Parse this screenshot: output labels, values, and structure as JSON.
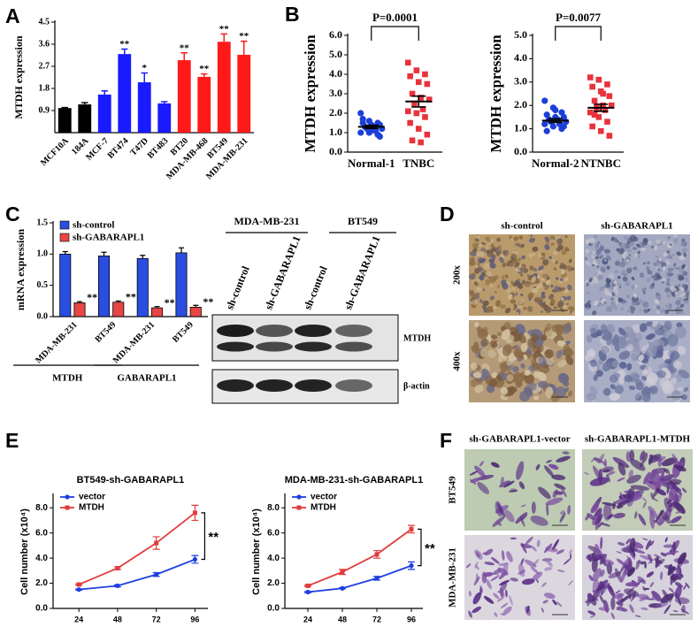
{
  "panel_letters": [
    "A",
    "B",
    "C",
    "D",
    "E",
    "F"
  ],
  "chart_data": [
    {
      "type": "bar",
      "ylabel": "MTDH expression",
      "categories": [
        "MCF10A",
        "184A",
        "MCF-7",
        "BT474",
        "T47D",
        "BT483",
        "BT20",
        "MDA-MB-468",
        "BT549",
        "MDA-MB-231"
      ],
      "values": [
        1.0,
        1.15,
        1.55,
        3.2,
        2.05,
        1.19,
        2.95,
        2.27,
        3.7,
        3.17
      ],
      "errors": [
        0.02,
        0.07,
        0.15,
        0.2,
        0.38,
        0.07,
        0.3,
        0.12,
        0.32,
        0.55
      ],
      "colors": [
        "#000000",
        "#000000",
        "#1a1aff",
        "#1a1aff",
        "#1a1aff",
        "#1a1aff",
        "#ff1a1a",
        "#ff1a1a",
        "#ff1a1a",
        "#ff1a1a"
      ],
      "annotations": [
        null,
        null,
        null,
        "**",
        "*",
        null,
        "**",
        "**",
        "**",
        "**"
      ],
      "ylim": [
        0,
        4.5
      ],
      "yticks": [
        0.9,
        1.8,
        2.7,
        3.6,
        4.5
      ]
    },
    {
      "type": "scatter",
      "ylabel": "MTDH expression",
      "categories": [
        "Normal-1",
        "TNBC"
      ],
      "annotation": "P=0.0001",
      "series": [
        {
          "color": "#1c3fd8",
          "values": [
            2.0,
            1.6,
            1.5,
            1.5,
            1.4,
            1.4,
            1.3,
            1.3,
            1.2,
            1.2,
            1.1,
            1.0,
            1.0,
            0.9,
            1.7,
            1.1,
            0.8
          ],
          "mean": 1.3,
          "sem": 0.08
        },
        {
          "color": "#e8323c",
          "values": [
            4.6,
            4.2,
            4.0,
            3.9,
            3.6,
            3.5,
            3.0,
            2.8,
            2.7,
            2.5,
            2.2,
            2.1,
            2.0,
            1.8,
            1.5,
            1.2,
            0.9,
            0.6,
            0.5
          ],
          "mean": 2.6,
          "sem": 0.28
        }
      ],
      "ylim": [
        0,
        6
      ],
      "yticks": [
        {
          "value": 0,
          "label": "0.0"
        },
        {
          "value": 1,
          "label": "1.0"
        },
        {
          "value": 2,
          "label": "2.0"
        },
        {
          "value": 3,
          "label": "3.0"
        },
        {
          "value": 4,
          "label": "4.0"
        },
        {
          "value": 5,
          "label": "5.0"
        },
        {
          "value": 6,
          "label": "6.0"
        }
      ]
    },
    {
      "type": "scatter",
      "ylabel": "MTDH expression",
      "categories": [
        "Normal-2",
        "NTNBC"
      ],
      "annotation": "P=0.0077",
      "series": [
        {
          "color": "#1c3fd8",
          "values": [
            2.2,
            1.9,
            1.7,
            1.6,
            1.5,
            1.5,
            1.4,
            1.4,
            1.3,
            1.3,
            1.2,
            1.2,
            1.1,
            1.0,
            0.9,
            1.8,
            1.1
          ],
          "mean": 1.35,
          "sem": 0.08
        },
        {
          "color": "#e8323c",
          "values": [
            3.2,
            3.1,
            2.9,
            2.8,
            2.6,
            2.4,
            2.2,
            2.0,
            2.0,
            1.9,
            1.8,
            1.7,
            1.5,
            1.3,
            1.1,
            0.9,
            0.7,
            1.6,
            2.5
          ],
          "mean": 1.9,
          "sem": 0.15
        }
      ],
      "ylim": [
        0,
        5
      ],
      "yticks": [
        {
          "value": 0,
          "label": "0.0"
        },
        {
          "value": 1,
          "label": "1.0"
        },
        {
          "value": 2,
          "label": "2.0"
        },
        {
          "value": 3,
          "label": "3.0"
        },
        {
          "value": 4,
          "label": "4.0"
        },
        {
          "value": 5,
          "label": "5.0"
        }
      ]
    },
    {
      "type": "grouped_bar",
      "ylabel": "mRNA expression",
      "categories": [
        "MDA-MB-231",
        "BT549",
        "MDA-MB-231",
        "BT549"
      ],
      "group_labels": [
        "MTDH",
        "GABARAPL1"
      ],
      "series": [
        {
          "name": "sh-control",
          "color": "#2b4de0",
          "values": [
            1.0,
            0.97,
            0.93,
            1.02
          ],
          "errors": [
            0.04,
            0.06,
            0.05,
            0.08
          ]
        },
        {
          "name": "sh-GABARAPL1",
          "color": "#e84545",
          "values": [
            0.22,
            0.23,
            0.14,
            0.15
          ],
          "errors": [
            0.02,
            0.02,
            0.02,
            0.03
          ],
          "annotations": [
            "**",
            "**",
            "**",
            "**"
          ]
        }
      ],
      "ylim": [
        0,
        1.5
      ],
      "yticks": [
        {
          "value": 0,
          "label": "0.0"
        },
        {
          "value": 0.5,
          "label": "0.5"
        },
        {
          "value": 1,
          "label": "1.0"
        },
        {
          "value": 1.5,
          "label": "1.5"
        }
      ]
    },
    {
      "type": "line",
      "title": "BT549-sh-GABARAPL1",
      "ylabel": "Cell number (x10⁴)",
      "x": [
        24,
        48,
        72,
        96
      ],
      "xticks": [
        24,
        48,
        72,
        96
      ],
      "xlim": [
        8,
        104
      ],
      "series": [
        {
          "name": "vector",
          "color": "#1f3fe0",
          "values": [
            1.5,
            1.8,
            2.7,
            3.9
          ],
          "errors": [
            0.05,
            0.08,
            0.15,
            0.3
          ]
        },
        {
          "name": "MTDH",
          "color": "#e03c3c",
          "values": [
            1.9,
            3.2,
            5.2,
            7.6
          ],
          "errors": [
            0.05,
            0.1,
            0.5,
            0.6
          ]
        }
      ],
      "annotation": "**",
      "ylim": [
        0,
        9
      ],
      "yticks": [
        {
          "value": 0,
          "label": "0.0"
        },
        {
          "value": 2,
          "label": "2.0"
        },
        {
          "value": 4,
          "label": "4.0"
        },
        {
          "value": 6,
          "label": "6.0"
        },
        {
          "value": 8,
          "label": "8.0"
        }
      ]
    },
    {
      "type": "line",
      "title": "MDA-MB-231-sh-GABARAPL1",
      "ylabel": "Cell number (x10⁴)",
      "x": [
        24,
        48,
        72,
        96
      ],
      "xticks": [
        24,
        48,
        72,
        96
      ],
      "xlim": [
        8,
        104
      ],
      "series": [
        {
          "name": "vector",
          "color": "#1f3fe0",
          "values": [
            1.3,
            1.6,
            2.4,
            3.4
          ],
          "errors": [
            0.05,
            0.05,
            0.15,
            0.3
          ]
        },
        {
          "name": "MTDH",
          "color": "#e03c3c",
          "values": [
            1.8,
            2.9,
            4.3,
            6.3
          ],
          "errors": [
            0.05,
            0.2,
            0.3,
            0.3
          ]
        }
      ],
      "annotation": "**",
      "ylim": [
        0,
        9
      ],
      "yticks": [
        {
          "value": 0,
          "label": "0.0"
        },
        {
          "value": 2,
          "label": "2.0"
        },
        {
          "value": 4,
          "label": "4.0"
        },
        {
          "value": 6,
          "label": "6.0"
        },
        {
          "value": 8,
          "label": "8.0"
        }
      ]
    }
  ],
  "blot": {
    "cell_lines": [
      "MDA-MB-231",
      "BT549"
    ],
    "lanes": [
      "sh-control",
      "sh-GABARAPL1",
      "sh-control",
      "sh-GABARAPL1"
    ],
    "proteins": [
      "MTDH",
      "β-actin"
    ]
  },
  "ihc": {
    "columns": [
      "sh-control",
      "sh-GABARAPL1"
    ],
    "rows": [
      "200x",
      "400x"
    ]
  },
  "transwell": {
    "columns": [
      "sh-GABARAPL1-vector",
      "sh-GABARAPL1-MTDH"
    ],
    "rows": [
      "BT549",
      "MDA-MB-231"
    ]
  }
}
